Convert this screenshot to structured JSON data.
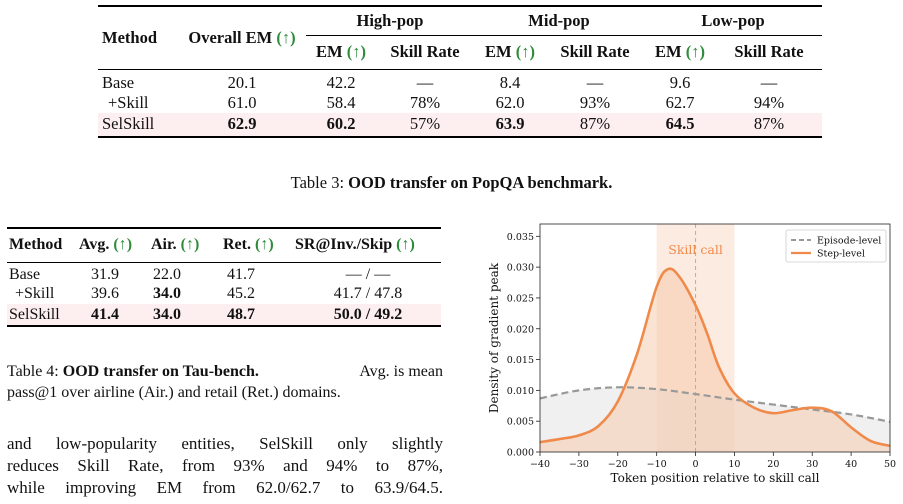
{
  "table3": {
    "headers": {
      "method": "Method",
      "overall": "Overall EM",
      "up": "(↑)",
      "groups": [
        "High-pop",
        "Mid-pop",
        "Low-pop"
      ],
      "em": "EM",
      "skill_rate": "Skill Rate"
    },
    "rows": [
      {
        "method": "Base",
        "overall": "20.1",
        "high_em": "42.2",
        "high_sr": "—",
        "mid_em": "8.4",
        "mid_sr": "—",
        "low_em": "9.6",
        "low_sr": "—"
      },
      {
        "method": "+Skill",
        "overall": "61.0",
        "high_em": "58.4",
        "high_sr": "78%",
        "mid_em": "62.0",
        "mid_sr": "93%",
        "low_em": "62.7",
        "low_sr": "94%"
      },
      {
        "method": "SelSkill",
        "overall": "62.9",
        "high_em": "60.2",
        "high_sr": "57%",
        "mid_em": "63.9",
        "mid_sr": "87%",
        "low_em": "64.5",
        "low_sr": "87%"
      }
    ],
    "caption_label": "Table 3:",
    "caption_bold": "OOD transfer on PopQA benchmark."
  },
  "table4": {
    "headers": {
      "method": "Method",
      "avg": "Avg.",
      "air": "Air.",
      "ret": "Ret.",
      "sr": "SR@Inv./Skip",
      "up": "(↑)"
    },
    "rows": [
      {
        "method": "Base",
        "avg": "31.9",
        "air": "22.0",
        "ret": "41.7",
        "sr": "— / —"
      },
      {
        "method": "+Skill",
        "avg": "39.6",
        "air": "34.0",
        "ret": "45.2",
        "sr": "41.7 / 47.8"
      },
      {
        "method": "SelSkill",
        "avg": "41.4",
        "air": "34.0",
        "ret": "48.7",
        "sr": "50.0 / 49.2"
      }
    ],
    "caption_label": "Table 4:",
    "caption_bold": "OOD transfer on Tau-bench.",
    "caption_rest_1": "Avg. is mean",
    "caption_rest_2": "pass@1 over airline (Air.) and retail (Ret.) domains."
  },
  "body_text": [
    "and low-popularity entities, SelSkill only slightly",
    "reduces Skill Rate, from 93% and 94% to 87%,",
    "while improving EM from 62.0/62.7 to 63.9/64.5."
  ],
  "chart_data": {
    "type": "area",
    "xlabel": "Token position relative to skill call",
    "ylabel": "Density of gradient peak",
    "xlim": [
      -40,
      50
    ],
    "ylim": [
      0,
      0.037
    ],
    "xticks": [
      -40,
      -30,
      -20,
      -10,
      0,
      10,
      20,
      30,
      40,
      50
    ],
    "yticks": [
      0.0,
      0.005,
      0.01,
      0.015,
      0.02,
      0.025,
      0.03,
      0.035
    ],
    "annotation": "Skill call",
    "legend_position": "top-right",
    "series": [
      {
        "name": "Episode-level",
        "color": "#999999",
        "style": "dashed",
        "x": [
          -40,
          -30,
          -20,
          -10,
          0,
          10,
          20,
          30,
          40,
          50
        ],
        "y": [
          0.0087,
          0.01,
          0.0105,
          0.0102,
          0.0094,
          0.0085,
          0.0077,
          0.0069,
          0.0061,
          0.0049
        ]
      },
      {
        "name": "Step-level",
        "color": "#f08a4b",
        "style": "solid",
        "x": [
          -40,
          -35,
          -30,
          -25,
          -20,
          -15,
          -10,
          -7,
          -4,
          0,
          3,
          6,
          10,
          15,
          20,
          25,
          30,
          35,
          40,
          45,
          50
        ],
        "y": [
          0.0016,
          0.0021,
          0.0027,
          0.0042,
          0.0082,
          0.016,
          0.0268,
          0.0297,
          0.0283,
          0.0238,
          0.0192,
          0.0138,
          0.0095,
          0.0072,
          0.0063,
          0.0068,
          0.0072,
          0.0066,
          0.004,
          0.0018,
          0.001
        ]
      }
    ]
  }
}
